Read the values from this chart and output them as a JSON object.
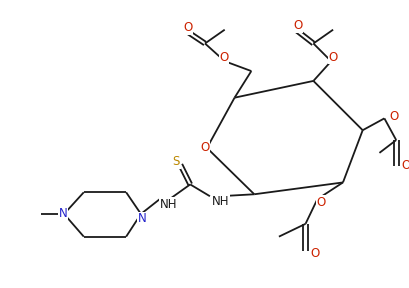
{
  "bg_color": "#ffffff",
  "line_color": "#1a1a1a",
  "label_color": "#1a1a1a",
  "atom_colors": {
    "O": "#cc2200",
    "N": "#2222cc",
    "S": "#bb8800",
    "C": "#1a1a1a"
  },
  "figsize": [
    4.1,
    2.88
  ],
  "dpi": 100,
  "lw": 1.3,
  "fs": 8.5
}
